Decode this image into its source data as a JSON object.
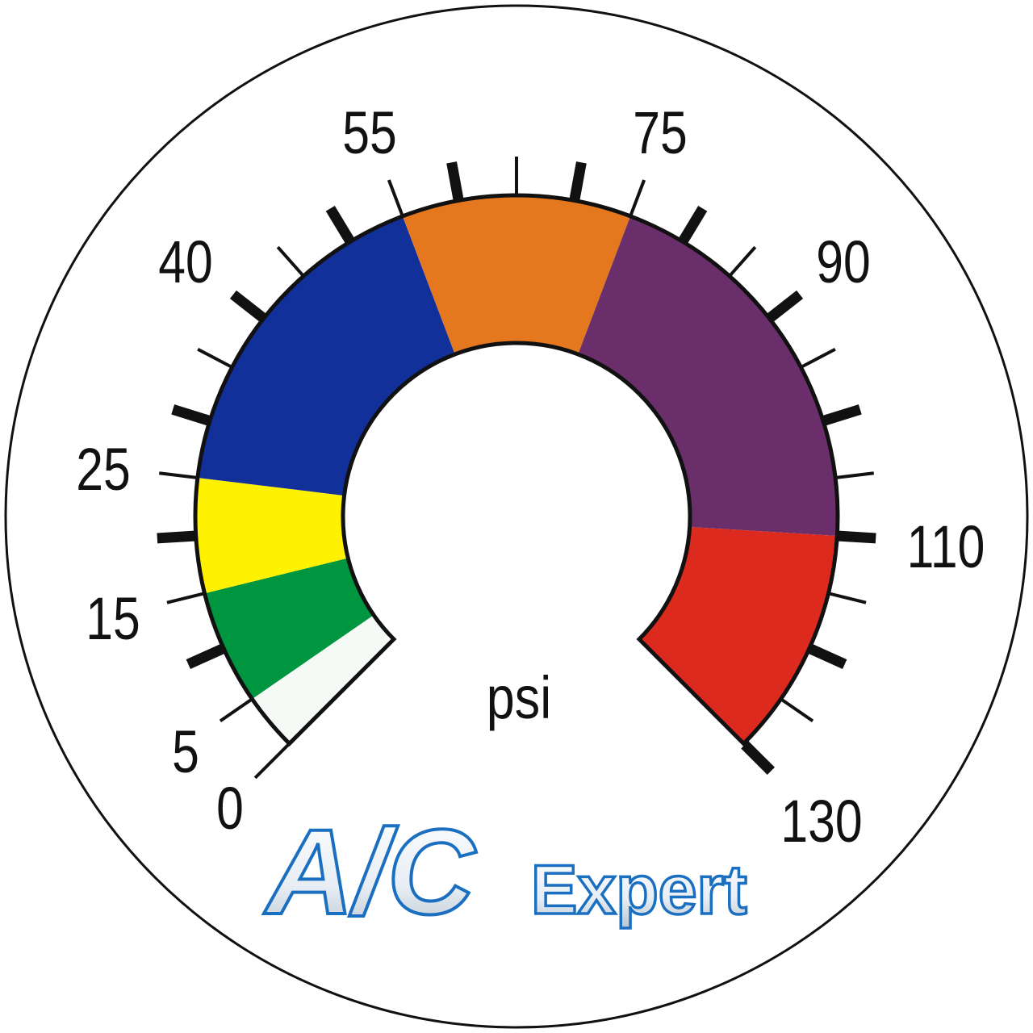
{
  "gauge": {
    "unit": "psi",
    "scale_labels": [
      "0",
      "5",
      "15",
      "25",
      "40",
      "55",
      "75",
      "90",
      "110",
      "130"
    ],
    "range": [
      0,
      130
    ],
    "bands": [
      {
        "from": "0",
        "to": "5",
        "color": "#f6faf6"
      },
      {
        "from": "5",
        "to": "15",
        "color": "#00953f"
      },
      {
        "from": "15",
        "to": "25",
        "color": "#fff200"
      },
      {
        "from": "25",
        "to": "55",
        "color": "#12309a"
      },
      {
        "from": "55",
        "to": "75",
        "color": "#e5781e"
      },
      {
        "from": "75",
        "to": "110",
        "color": "#6a2f6a"
      },
      {
        "from": "110",
        "to": "130",
        "color": "#dc2a1e"
      }
    ]
  },
  "logo": {
    "main": "A/C",
    "sub": "Expert",
    "color": "#1a6fc0"
  }
}
